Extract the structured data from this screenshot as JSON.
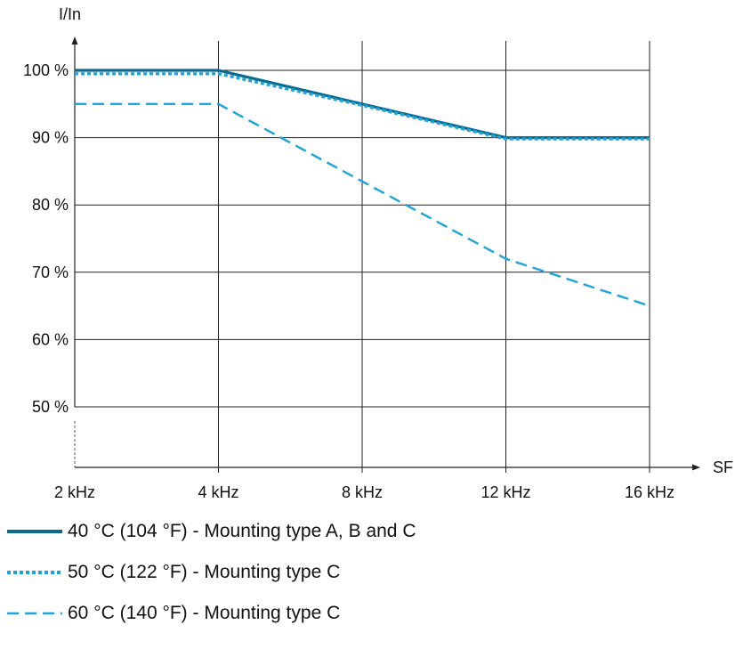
{
  "chart_data": {
    "type": "line",
    "ylabel": "I/In",
    "xlabel": "SF",
    "categories": [
      "2 kHz",
      "4 kHz",
      "8 kHz",
      "12 kHz",
      "16 kHz"
    ],
    "ylim": [
      40,
      103
    ],
    "yticks": [
      {
        "value": 50,
        "label": "50 %"
      },
      {
        "value": 60,
        "label": "60 %"
      },
      {
        "value": 70,
        "label": "70 %"
      },
      {
        "value": 80,
        "label": "80 %"
      },
      {
        "value": 90,
        "label": "90 %"
      },
      {
        "value": 100,
        "label": "100 %"
      }
    ],
    "grid": true,
    "series": [
      {
        "name": "40 °C (104 °F) - Mounting type A, B and C",
        "values": [
          100,
          100,
          95,
          90,
          90
        ],
        "color": "#0b6a8f",
        "style": "solid"
      },
      {
        "name": "50 °C (122 °F) - Mounting type C",
        "values": [
          99.5,
          99.5,
          94.8,
          89.8,
          89.8
        ],
        "color": "#1ba4dd",
        "style": "dotted"
      },
      {
        "name": "60 °C (140 °F) - Mounting type C",
        "values": [
          95,
          95,
          83.5,
          72,
          65
        ],
        "color": "#1ba4dd",
        "style": "dashed"
      }
    ]
  }
}
